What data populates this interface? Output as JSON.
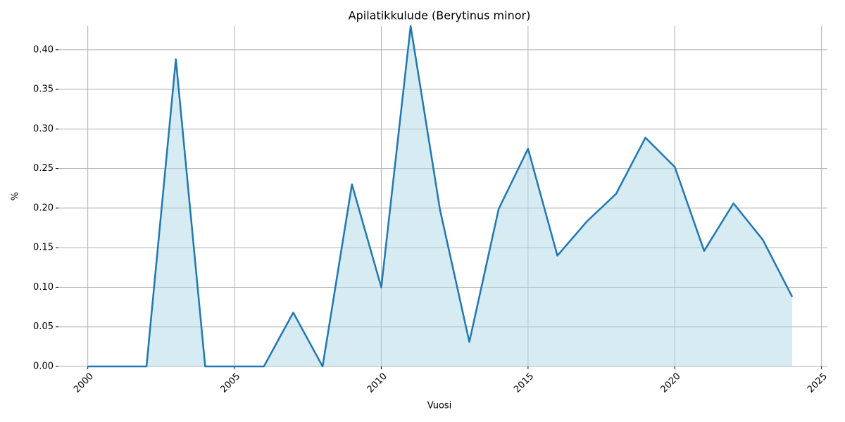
{
  "chart_data": {
    "type": "line",
    "title": "Apilatikkulude (Berytinus minor)",
    "xlabel": "Vuosi",
    "ylabel": "%",
    "x": [
      2000,
      2001,
      2002,
      2003,
      2004,
      2005,
      2006,
      2007,
      2008,
      2009,
      2010,
      2011,
      2012,
      2013,
      2014,
      2015,
      2016,
      2017,
      2018,
      2019,
      2020,
      2021,
      2022,
      2023,
      2024
    ],
    "series": [
      {
        "name": "%",
        "color": "#1f77b4",
        "fill": "#add8e6",
        "values": [
          0,
          0,
          0,
          0.388,
          0,
          0,
          0,
          0.068,
          0,
          0.23,
          0.1,
          0.43,
          0.198,
          0.031,
          0.199,
          0.275,
          0.14,
          0.183,
          0.218,
          0.289,
          0.252,
          0.146,
          0.206,
          0.16,
          0.088
        ]
      }
    ],
    "xlim": [
      1999,
      2025.2
    ],
    "xticks": [
      2000,
      2005,
      2010,
      2015,
      2020,
      2025
    ],
    "ylim": [
      0,
      0.43
    ],
    "yticks": [
      {
        "value": 0,
        "label": "0.00"
      },
      {
        "value": 0.05,
        "label": "0.05"
      },
      {
        "value": 0.1,
        "label": "0.10"
      },
      {
        "value": 0.15,
        "label": "0.15"
      },
      {
        "value": 0.2,
        "label": "0.20"
      },
      {
        "value": 0.25,
        "label": "0.25"
      },
      {
        "value": 0.3,
        "label": "0.30"
      },
      {
        "value": 0.35,
        "label": "0.35"
      },
      {
        "value": 0.4,
        "label": "0.40"
      }
    ],
    "grid": true
  }
}
